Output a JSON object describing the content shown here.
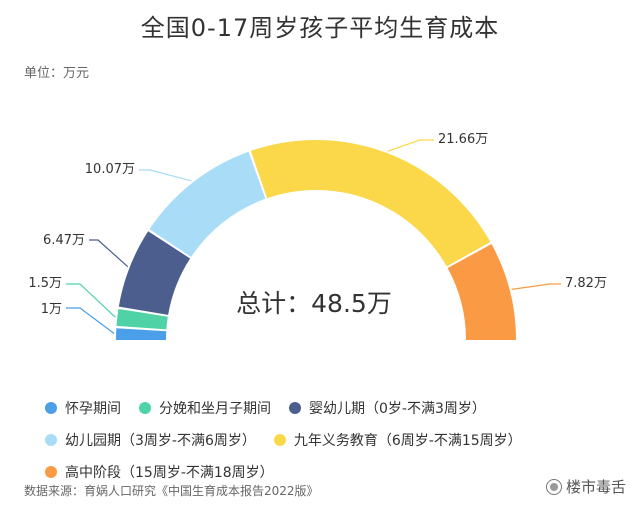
{
  "chart_data": {
    "type": "pie",
    "title": "全国0-17周岁孩子平均生育成本",
    "unit_label": "单位：万元",
    "total_label": "总计：48.5万",
    "center_x": 0,
    "slices": [
      {
        "name": "怀孕期间",
        "value": 1,
        "label": "1万",
        "color": "#4a9fe8"
      },
      {
        "name": "分娩和坐月子期间",
        "value": 1.5,
        "label": "1.5万",
        "color": "#4fd2a6"
      },
      {
        "name": "婴幼儿期（0岁-不满3周岁）",
        "value": 6.47,
        "label": "6.47万",
        "color": "#4c5e8e"
      },
      {
        "name": "幼儿园期（3周岁-不满6周岁）",
        "value": 10.07,
        "label": "10.07万",
        "color": "#a8dcf7"
      },
      {
        "name": "九年义务教育（6周岁-不满15周岁）",
        "value": 21.66,
        "label": "21.66万",
        "color": "#fad84a"
      },
      {
        "name": "高中阶段（15周岁-不满18周岁）",
        "value": 7.82,
        "label": "7.82万",
        "color": "#fa9a44"
      }
    ]
  },
  "source": "数据来源：育娲人口研究《中国生育成本报告2022版》",
  "watermark": "楼市毒舌"
}
